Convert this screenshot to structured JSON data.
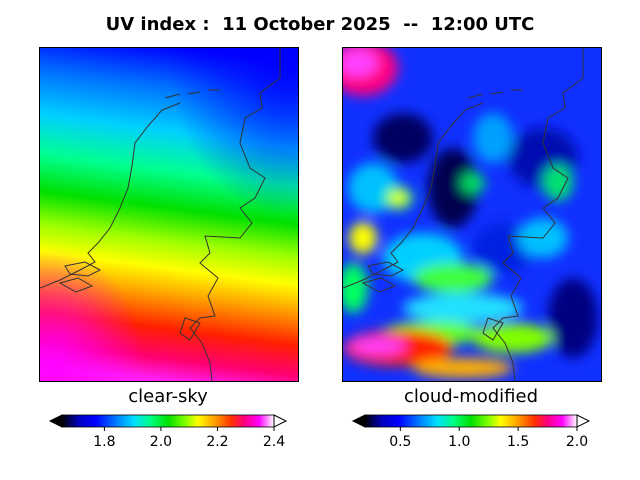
{
  "title": "UV index :  11 October 2025  --  12:00 UTC",
  "panels": [
    {
      "label": "clear-sky",
      "colorbar": {
        "min": 1.65,
        "max": 2.4,
        "ticks": [
          "1.8",
          "2.0",
          "2.2",
          "2.4"
        ],
        "tick_values": [
          1.8,
          2.0,
          2.2,
          2.4
        ]
      }
    },
    {
      "label": "cloud-modified",
      "colorbar": {
        "min": 0.2,
        "max": 2.0,
        "ticks": [
          "0.5",
          "1.0",
          "1.5",
          "2.0"
        ],
        "tick_values": [
          0.5,
          1.0,
          1.5,
          2.0
        ]
      }
    }
  ],
  "colors": {
    "scale": [
      "#000000",
      "#0000c0",
      "#0000ff",
      "#0080ff",
      "#00e0ff",
      "#00ff80",
      "#00e000",
      "#80ff00",
      "#ffff00",
      "#ffa000",
      "#ff3000",
      "#ff0080",
      "#ff00ff",
      "#ffffff"
    ],
    "border": "#333333"
  }
}
